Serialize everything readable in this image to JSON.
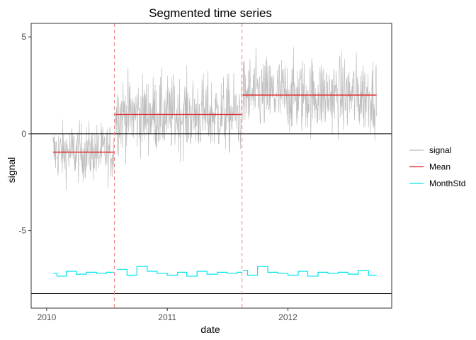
{
  "chart_data": {
    "type": "line",
    "title": "Segmented time series",
    "xlabel": "date",
    "ylabel": "signal",
    "x_range": [
      "2009-11-15",
      "2012-11-10"
    ],
    "ylim": [
      -9.0,
      5.7
    ],
    "x_ticks": [
      {
        "label": "2010",
        "date": "2010-01-01"
      },
      {
        "label": "2011",
        "date": "2011-01-01"
      },
      {
        "label": "2012",
        "date": "2012-01-01"
      }
    ],
    "y_ticks": [
      {
        "label": "5",
        "value": 5
      },
      {
        "label": "0",
        "value": 0
      },
      {
        "label": "-5",
        "value": -5
      }
    ],
    "grid": false,
    "legend_position": "right",
    "legend": [
      {
        "label": "signal",
        "color": "#bebebe"
      },
      {
        "label": "Mean",
        "color": "#e41a1c"
      },
      {
        "label": "MonthStd",
        "color": "#00e5ee"
      }
    ],
    "reference_lines": [
      {
        "axis": "y",
        "value": 0,
        "color": "#000000"
      },
      {
        "axis": "y",
        "value": -8.25,
        "color": "#000000"
      }
    ],
    "changepoints": [
      "2010-07-25",
      "2011-08-15"
    ],
    "changepoint_color": "#f08080",
    "series": [
      {
        "name": "signal",
        "color": "#bebebe",
        "segments": [
          {
            "start": "2010-01-20",
            "end": "2010-07-24",
            "mean": -0.95,
            "spread": 0.75
          },
          {
            "start": "2010-07-27",
            "end": "2011-08-14",
            "mean": 1.0,
            "spread": 1.0
          },
          {
            "start": "2011-08-17",
            "end": "2012-09-25",
            "mean": 2.0,
            "spread": 1.0
          }
        ]
      },
      {
        "name": "Mean",
        "color": "#e41a1c",
        "segments": [
          {
            "start": "2010-01-20",
            "end": "2010-07-24",
            "value": -0.95
          },
          {
            "start": "2010-07-27",
            "end": "2011-08-14",
            "value": 1.0
          },
          {
            "start": "2011-08-17",
            "end": "2012-09-25",
            "value": 2.0
          }
        ]
      },
      {
        "name": "MonthStd",
        "color": "#00e5ee",
        "segments": [
          {
            "months": [
              "2010-01",
              "2010-02",
              "2010-03",
              "2010-04",
              "2010-05",
              "2010-06",
              "2010-07"
            ],
            "values": [
              -7.2,
              -7.35,
              -7.1,
              -7.25,
              -7.15,
              -7.2,
              -7.15
            ]
          },
          {
            "months": [
              "2010-08",
              "2010-09",
              "2010-10",
              "2010-11",
              "2010-12",
              "2011-01",
              "2011-02",
              "2011-03",
              "2011-04",
              "2011-05",
              "2011-06",
              "2011-07",
              "2011-08"
            ],
            "values": [
              -7.0,
              -7.3,
              -6.85,
              -7.1,
              -7.2,
              -7.3,
              -7.15,
              -7.35,
              -7.1,
              -7.25,
              -7.15,
              -7.2,
              -7.15
            ]
          },
          {
            "months": [
              "2011-08",
              "2011-09",
              "2011-10",
              "2011-11",
              "2011-12",
              "2012-01",
              "2012-02",
              "2012-03",
              "2012-04",
              "2012-05",
              "2012-06",
              "2012-07",
              "2012-08",
              "2012-09"
            ],
            "values": [
              -7.05,
              -7.3,
              -6.85,
              -7.15,
              -7.2,
              -7.3,
              -7.1,
              -7.35,
              -7.15,
              -7.2,
              -7.15,
              -7.25,
              -7.05,
              -7.3
            ]
          }
        ]
      }
    ]
  }
}
